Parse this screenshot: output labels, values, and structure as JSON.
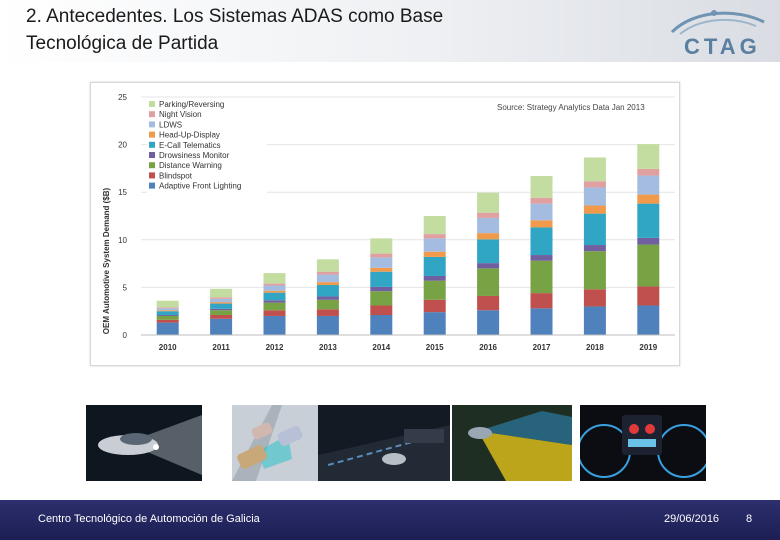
{
  "header": {
    "title_line1": "2. Antecedentes. Los Sistemas ADAS como Base",
    "title_line2": "Tecnológica de Partida",
    "logo_text": "CTAG"
  },
  "chart_data": {
    "type": "bar",
    "stacked": true,
    "title": "",
    "source_note": "Source: Strategy Analytics Data Jan 2013",
    "xlabel": "",
    "ylabel": "OEM Automotive System Demand ($B)",
    "ylim": [
      0,
      25
    ],
    "yticks": [
      "0",
      "5",
      "10",
      "15",
      "20",
      "25"
    ],
    "categories": [
      "2010",
      "2011",
      "2012",
      "2013",
      "2014",
      "2015",
      "2016",
      "2017",
      "2018",
      "2019"
    ],
    "legend_position": "top-left",
    "series": [
      {
        "name": "Adaptive Front Lighting",
        "color": "#4f81bd",
        "values": [
          1.3,
          1.7,
          2.0,
          2.0,
          2.1,
          2.4,
          2.6,
          2.8,
          3.0,
          3.1
        ]
      },
      {
        "name": "Blindspot",
        "color": "#c0504d",
        "values": [
          0.3,
          0.4,
          0.6,
          0.7,
          1.0,
          1.3,
          1.5,
          1.6,
          1.8,
          2.0
        ]
      },
      {
        "name": "Distance Warning",
        "color": "#77a345",
        "values": [
          0.4,
          0.5,
          0.8,
          1.0,
          1.5,
          2.0,
          2.9,
          3.4,
          4.0,
          4.4
        ]
      },
      {
        "name": "Drowsiness Monitor",
        "color": "#7160a0",
        "values": [
          0.1,
          0.15,
          0.25,
          0.35,
          0.45,
          0.5,
          0.55,
          0.6,
          0.65,
          0.7
        ]
      },
      {
        "name": "E-Call Telematics",
        "color": "#31a6c4",
        "values": [
          0.4,
          0.55,
          0.8,
          1.2,
          1.6,
          2.0,
          2.5,
          2.9,
          3.3,
          3.6
        ]
      },
      {
        "name": "Head-Up-Display",
        "color": "#f29a4b",
        "values": [
          0.1,
          0.15,
          0.2,
          0.3,
          0.4,
          0.55,
          0.65,
          0.75,
          0.85,
          0.95
        ]
      },
      {
        "name": "LDWS",
        "color": "#a4bce0",
        "values": [
          0.2,
          0.35,
          0.55,
          0.8,
          1.1,
          1.4,
          1.6,
          1.75,
          1.9,
          2.0
        ]
      },
      {
        "name": "Night Vision",
        "color": "#e0a0a0",
        "values": [
          0.1,
          0.15,
          0.2,
          0.3,
          0.4,
          0.45,
          0.55,
          0.6,
          0.65,
          0.7
        ]
      },
      {
        "name": "Parking/Reversing",
        "color": "#c3dc9f",
        "values": [
          0.7,
          0.9,
          1.1,
          1.3,
          1.6,
          1.9,
          2.1,
          2.3,
          2.5,
          2.6
        ]
      }
    ]
  },
  "footer": {
    "organization": "Centro Tecnológico de Automoción de Galicia",
    "date": "29/06/2016",
    "page_number": "8"
  },
  "thumbnails": [
    {
      "label": "car headlights night"
    },
    {
      "label": "blindspot detection"
    },
    {
      "label": "night highway"
    },
    {
      "label": "distance sensor"
    },
    {
      "label": "instrument cluster"
    }
  ]
}
